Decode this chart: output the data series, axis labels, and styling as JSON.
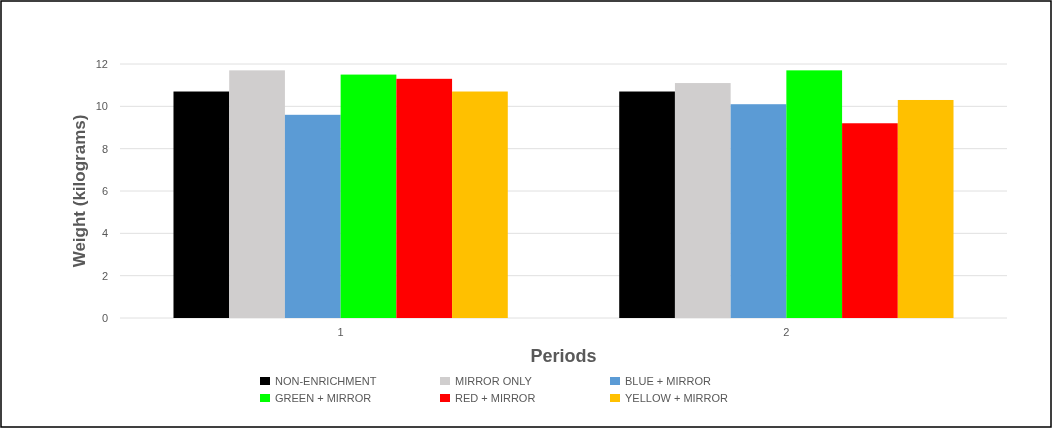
{
  "chart_data": {
    "type": "bar",
    "xlabel": "Periods",
    "ylabel": "Weight (kilograms)",
    "categories": [
      "1",
      "2"
    ],
    "series": [
      {
        "name": "NON-ENRICHMENT",
        "color": "#000000",
        "values": [
          10.7,
          10.7
        ]
      },
      {
        "name": "MIRROR ONLY",
        "color": "#d0cece",
        "values": [
          11.7,
          11.1
        ]
      },
      {
        "name": "BLUE + MIRROR",
        "color": "#5b9bd5",
        "values": [
          9.6,
          10.1
        ]
      },
      {
        "name": "GREEN + MIRROR",
        "color": "#00ff00",
        "values": [
          11.5,
          11.7
        ]
      },
      {
        "name": "RED + MIRROR",
        "color": "#ff0000",
        "values": [
          11.3,
          9.2
        ]
      },
      {
        "name": "YELLOW + MIRROR",
        "color": "#ffc000",
        "values": [
          10.7,
          10.3
        ]
      }
    ],
    "ylim": [
      0,
      12
    ],
    "yticks": [
      0,
      2,
      4,
      6,
      8,
      10,
      12
    ],
    "grid": "y",
    "legend": "bottom"
  }
}
